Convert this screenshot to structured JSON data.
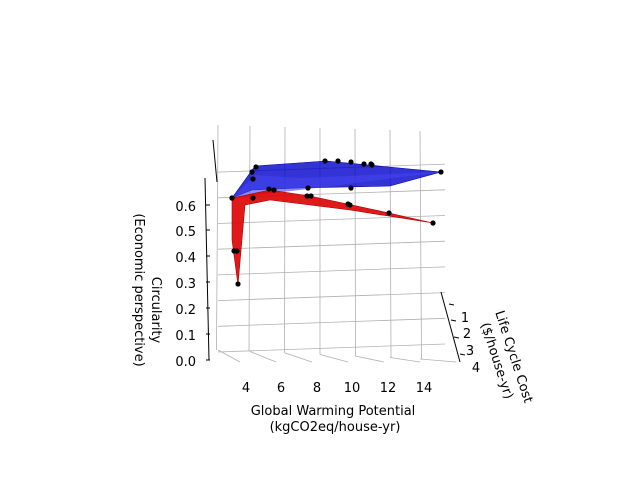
{
  "chart_data": {
    "type": "surface3d",
    "title": "",
    "xlabel_lines": [
      "Global Warming Potential",
      "(kgCO2eq/house-yr)"
    ],
    "ylabel_lines": [
      "Life Cycle Cost",
      "($/house-yr)"
    ],
    "zlabel_lines": [
      "Circularity",
      "(Economic perspective)"
    ],
    "x_ticks": [
      "4",
      "6",
      "8",
      "10",
      "12",
      "14"
    ],
    "y_ticks": [
      "1",
      "2",
      "3",
      "4"
    ],
    "z_ticks": [
      "0.0",
      "0.1",
      "0.2",
      "0.3",
      "0.4",
      "0.5",
      "0.6"
    ],
    "series": [
      {
        "color": "#0000cc",
        "points": [
          {
            "x": 2.2,
            "z": 0.62
          },
          {
            "x": 3.1,
            "z": 0.72
          },
          {
            "x": 3.9,
            "z": 0.75
          },
          {
            "x": 9.8,
            "z": 0.74
          },
          {
            "x": 10.5,
            "z": 0.74
          },
          {
            "x": 11.1,
            "z": 0.74
          },
          {
            "x": 11.8,
            "z": 0.735
          },
          {
            "x": 12.2,
            "z": 0.735
          },
          {
            "x": 12.8,
            "z": 0.73
          },
          {
            "x": 13.9,
            "z": 0.72
          },
          {
            "x": 8.6,
            "z": 0.68
          },
          {
            "x": 10.9,
            "z": 0.67
          }
        ]
      },
      {
        "color": "#dd0000",
        "points": [
          {
            "x": 2.3,
            "z": 0.62
          },
          {
            "x": 2.5,
            "z": 0.42
          },
          {
            "x": 2.7,
            "z": 0.42
          },
          {
            "x": 2.9,
            "z": 0.28
          },
          {
            "x": 4.2,
            "z": 0.62
          },
          {
            "x": 4.9,
            "z": 0.65
          },
          {
            "x": 5.3,
            "z": 0.65
          },
          {
            "x": 7.1,
            "z": 0.64
          },
          {
            "x": 7.5,
            "z": 0.63
          },
          {
            "x": 8.8,
            "z": 0.6
          },
          {
            "x": 9.2,
            "z": 0.6
          },
          {
            "x": 11.6,
            "z": 0.58
          },
          {
            "x": 13.4,
            "z": 0.55
          }
        ]
      }
    ]
  }
}
